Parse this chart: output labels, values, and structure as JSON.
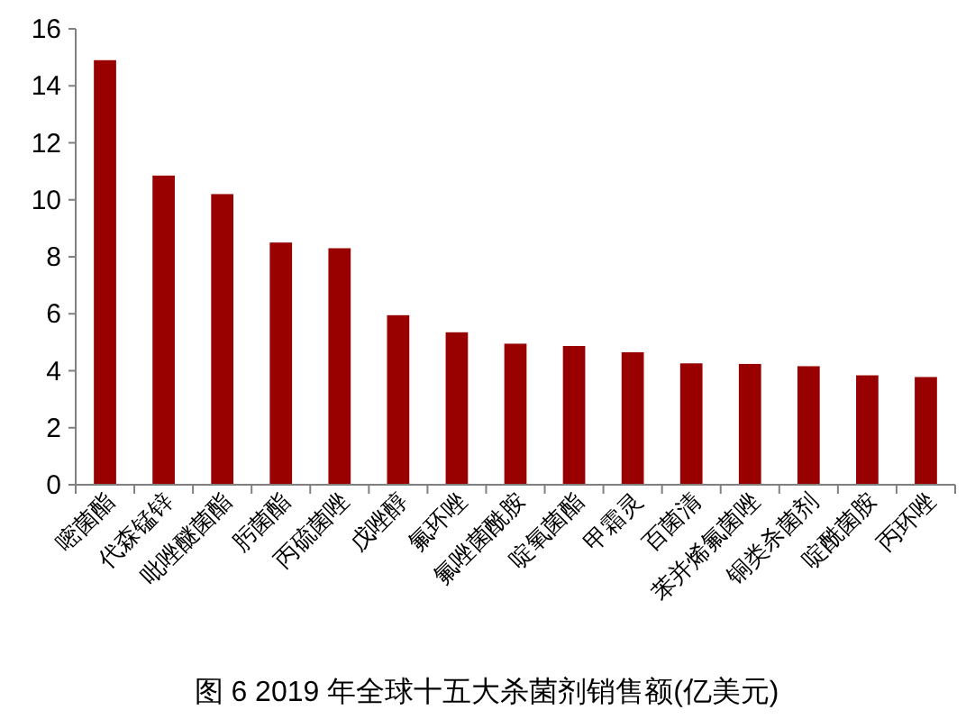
{
  "chart_data": {
    "type": "bar",
    "title": "图 6  2019 年全球十五大杀菌剂销售额(亿美元)",
    "categories": [
      "嘧菌酯",
      "代森锰锌",
      "吡唑醚菌酯",
      "肟菌酯",
      "丙硫菌唑",
      "戊唑醇",
      "氟环唑",
      "氟唑菌酰胺",
      "啶氧菌酯",
      "甲霜灵",
      "百菌清",
      "苯并烯氟菌唑",
      "铜类杀菌剂",
      "啶酰菌胺",
      "丙环唑"
    ],
    "values": [
      14.9,
      10.85,
      10.2,
      8.5,
      8.3,
      5.95,
      5.35,
      4.95,
      4.87,
      4.65,
      4.26,
      4.24,
      4.16,
      3.84,
      3.78
    ],
    "color": "#990000",
    "ylim": [
      0,
      16
    ],
    "yticks": [
      0,
      2,
      4,
      6,
      8,
      10,
      12,
      14,
      16
    ]
  }
}
